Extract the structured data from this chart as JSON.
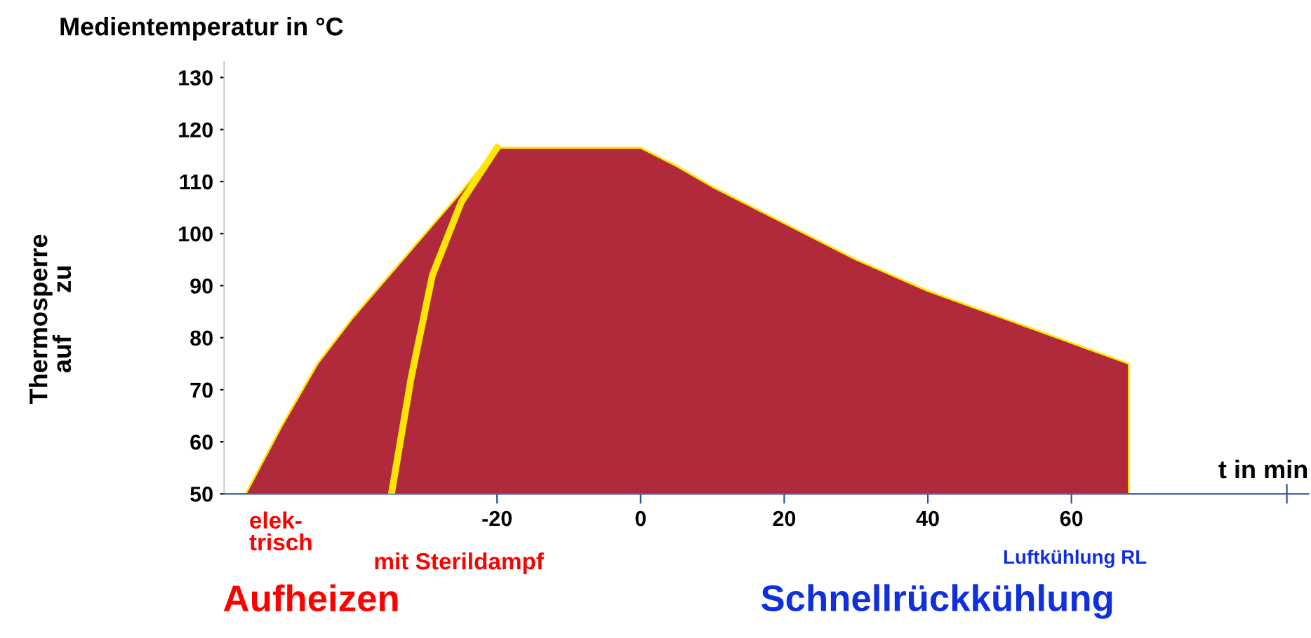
{
  "chart_data": {
    "type": "area",
    "title": "Medientemperatur in °C",
    "xlabel": "t in min",
    "series": [
      {
        "color": "#b02a3c",
        "x": [
          -55,
          -50,
          -45,
          -40,
          -35,
          -30,
          -25,
          -20,
          0,
          5,
          10,
          20,
          30,
          40,
          50,
          60,
          68,
          68
        ],
        "values": [
          50,
          63,
          75,
          84,
          92,
          100,
          108,
          116.5,
          116.5,
          113,
          109,
          102,
          95,
          89,
          84,
          79,
          75,
          50
        ]
      },
      {
        "type": "line",
        "color": "#ffe600",
        "x": [
          -34.7,
          -32,
          -29,
          -25,
          -20
        ],
        "values": [
          50,
          72,
          92,
          106,
          116.5
        ]
      }
    ],
    "xlim": [
      -58,
      93
    ],
    "ylim": [
      50,
      133
    ],
    "xticks": [
      -20,
      0,
      20,
      40,
      60,
      {
        "value": 90,
        "label": null
      }
    ],
    "yticks": [
      50,
      60,
      70,
      80,
      90,
      100,
      110,
      120,
      130
    ],
    "grid": false,
    "legend": false,
    "annotations": [
      "elek-\ntrisch",
      "mit Sterildampf",
      "Luftkühlung RL",
      "Aufheizen",
      "Schnellrückkühlung",
      "Thermosperre\nauf      zu"
    ]
  }
}
